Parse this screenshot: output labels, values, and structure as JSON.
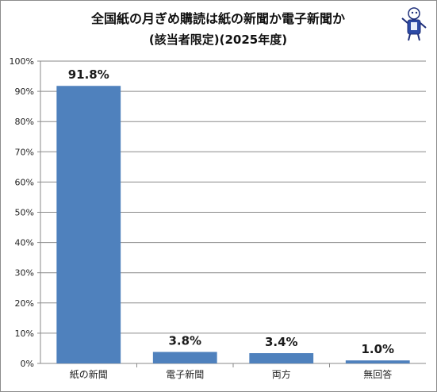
{
  "chart_data": {
    "type": "bar",
    "title": "全国紙の月ぎめ購読は紙の新聞か電子新聞か",
    "subtitle": "(該当者限定)(2025年度)",
    "categories": [
      "紙の新聞",
      "電子新聞",
      "両方",
      "無回答"
    ],
    "values": [
      91.8,
      3.8,
      3.4,
      1.0
    ],
    "value_labels": [
      "91.8%",
      "3.8%",
      "3.4%",
      "1.0%"
    ],
    "ylim": [
      0,
      100
    ],
    "yticks": [
      0,
      10,
      20,
      30,
      40,
      50,
      60,
      70,
      80,
      90,
      100
    ],
    "ytick_labels": [
      "0%",
      "10%",
      "20%",
      "30%",
      "40%",
      "50%",
      "60%",
      "70%",
      "80%",
      "90%",
      "100%"
    ],
    "xlabel": "",
    "ylabel": "",
    "grid": true,
    "legend": "none",
    "bar_color": "#4f81bd"
  }
}
